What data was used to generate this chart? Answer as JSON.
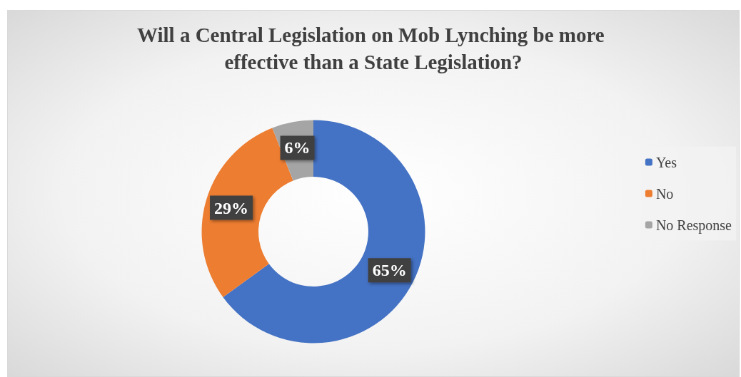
{
  "chart_data": {
    "type": "donut",
    "title": "Will a Central Legislation on Mob Lynching be more effective than a State Legislation?",
    "categories": [
      "Yes",
      "No",
      "No Response"
    ],
    "values": [
      65,
      29,
      6
    ],
    "value_labels": [
      "65%",
      "29%",
      "6%"
    ],
    "colors": [
      "#4472c4",
      "#ed7d31",
      "#a5a5a5"
    ],
    "legend": "right"
  }
}
